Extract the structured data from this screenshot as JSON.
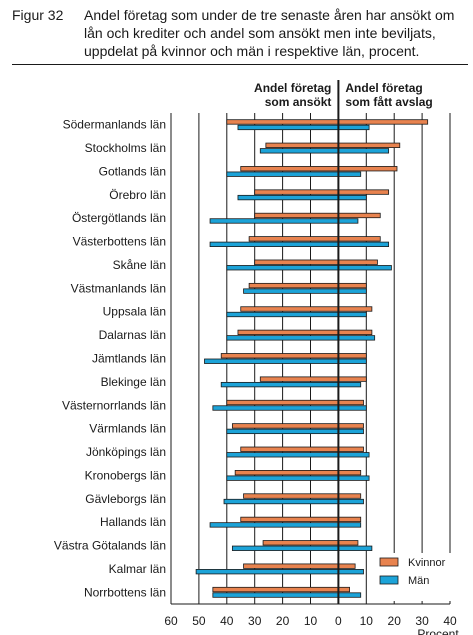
{
  "figure_label": "Figur 32",
  "title": "Andel företag som under de tre senaste åren har ansökt om lån och krediter och andel som ansökt men inte beviljats, uppdelat på kvinnor och män i respektive län, procent.",
  "chart_data": {
    "type": "bar",
    "orientation": "horizontal",
    "left_header": [
      "Andel företag",
      "som ansökt"
    ],
    "right_header": [
      "Andel företag",
      "som fått avslag"
    ],
    "x_unit_label": "Procent",
    "xlim": [
      -60,
      40
    ],
    "x_ticks": [
      -60,
      -50,
      -40,
      -30,
      -20,
      -10,
      0,
      10,
      20,
      30,
      40
    ],
    "x_tick_labels": [
      "60",
      "50",
      "40",
      "30",
      "20",
      "10",
      "0",
      "10",
      "20",
      "30",
      "40"
    ],
    "grid": true,
    "legend_position": "bottom-right",
    "categories": [
      "Södermanlands län",
      "Stockholms län",
      "Gotlands län",
      "Örebro län",
      "Östergötlands län",
      "Västerbottens län",
      "Skåne län",
      "Västmanlands län",
      "Uppsala län",
      "Dalarnas län",
      "Jämtlands län",
      "Blekinge län",
      "Västernorrlands län",
      "Värmlands län",
      "Jönköpings län",
      "Kronobergs län",
      "Gävleborgs län",
      "Hallands län",
      "Västra Götalands län",
      "Kalmar län",
      "Norrbottens län"
    ],
    "series": [
      {
        "name": "Kvinnor",
        "color": "#e8834f",
        "applied": [
          40,
          26,
          35,
          30,
          30,
          32,
          30,
          32,
          35,
          36,
          42,
          28,
          40,
          38,
          35,
          37,
          34,
          35,
          27,
          34,
          45
        ],
        "rejected": [
          32,
          22,
          21,
          18,
          15,
          15,
          14,
          10,
          12,
          12,
          10,
          10,
          9,
          9,
          9,
          8,
          8,
          8,
          7,
          6,
          4
        ]
      },
      {
        "name": "Män",
        "color": "#1ca3d8",
        "applied": [
          36,
          28,
          40,
          36,
          46,
          46,
          40,
          34,
          40,
          40,
          48,
          42,
          45,
          40,
          40,
          40,
          41,
          46,
          38,
          51,
          45
        ],
        "rejected": [
          11,
          18,
          8,
          10,
          7,
          18,
          19,
          10,
          10,
          13,
          10,
          8,
          10,
          9,
          11,
          11,
          9,
          8,
          12,
          9,
          8
        ]
      }
    ]
  }
}
